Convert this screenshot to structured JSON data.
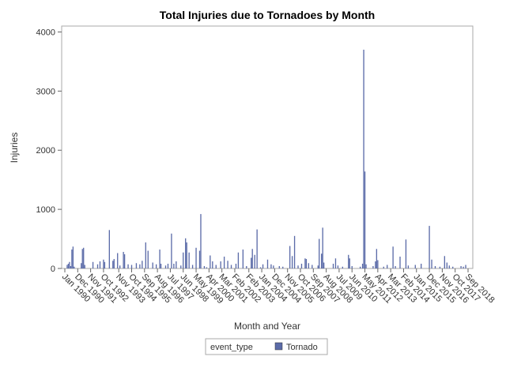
{
  "chart_data": {
    "type": "bar",
    "title": "Total Injuries due to Tornadoes by Month",
    "xlabel": "Month and Year",
    "ylabel": "Injuries",
    "ylim": [
      0,
      4100
    ],
    "yticks": [
      "0",
      "1000",
      "2000",
      "3000",
      "4000"
    ],
    "x_start": "1990-01",
    "x_end": "2018-09",
    "xticks": [
      "Jan 1990",
      "Dec 1990",
      "Nov 1991",
      "Oct 1992",
      "Nov 1993",
      "Oct 1994",
      "Sep 1995",
      "Aug 1996",
      "Jul 1997",
      "Jun 1998",
      "May 1999",
      "Apr 2000",
      "Mar 2001",
      "Feb 2002",
      "Feb 2003",
      "Jan 2004",
      "Dec 2004",
      "Nov 2005",
      "Oct 2006",
      "Sep 2007",
      "Aug 2008",
      "Jul 2009",
      "Jun 2010",
      "May 2011",
      "Apr 2012",
      "Mar 2013",
      "Feb 2014",
      "Jan 2015",
      "Dec 2015",
      "Nov 2016",
      "Oct 2017",
      "Sep 2018"
    ],
    "grid": false,
    "legend": {
      "position": "bottom-center",
      "title": "event_type",
      "entries": [
        "Tornado"
      ]
    },
    "series": [
      {
        "name": "Tornado",
        "color": "#5b6ba8",
        "points": [
          [
            "1990-03",
            60
          ],
          [
            "1990-04",
            80
          ],
          [
            "1990-05",
            110
          ],
          [
            "1990-06",
            40
          ],
          [
            "1990-07",
            320
          ],
          [
            "1990-08",
            370
          ],
          [
            "1990-09",
            30
          ],
          [
            "1991-03",
            90
          ],
          [
            "1991-04",
            330
          ],
          [
            "1991-05",
            350
          ],
          [
            "1991-06",
            60
          ],
          [
            "1992-01",
            110
          ],
          [
            "1992-05",
            70
          ],
          [
            "1992-07",
            120
          ],
          [
            "1992-10",
            150
          ],
          [
            "1992-11",
            110
          ],
          [
            "1993-03",
            650
          ],
          [
            "1993-06",
            130
          ],
          [
            "1993-07",
            160
          ],
          [
            "1993-10",
            260
          ],
          [
            "1993-12",
            50
          ],
          [
            "1994-03",
            280
          ],
          [
            "1994-04",
            240
          ],
          [
            "1994-07",
            70
          ],
          [
            "1994-10",
            60
          ],
          [
            "1995-02",
            90
          ],
          [
            "1995-05",
            70
          ],
          [
            "1995-07",
            130
          ],
          [
            "1995-10",
            440
          ],
          [
            "1995-12",
            300
          ],
          [
            "1996-04",
            100
          ],
          [
            "1996-07",
            70
          ],
          [
            "1996-10",
            320
          ],
          [
            "1996-11",
            80
          ],
          [
            "1997-03",
            50
          ],
          [
            "1997-05",
            80
          ],
          [
            "1997-08",
            590
          ],
          [
            "1997-10",
            80
          ],
          [
            "1997-12",
            120
          ],
          [
            "1998-04",
            50
          ],
          [
            "1998-06",
            270
          ],
          [
            "1998-08",
            510
          ],
          [
            "1998-09",
            440
          ],
          [
            "1998-11",
            270
          ],
          [
            "1999-02",
            60
          ],
          [
            "1999-05",
            350
          ],
          [
            "1999-08",
            300
          ],
          [
            "1999-09",
            920
          ],
          [
            "1999-12",
            40
          ],
          [
            "2000-02",
            20
          ],
          [
            "2000-05",
            220
          ],
          [
            "2000-07",
            120
          ],
          [
            "2000-10",
            60
          ],
          [
            "2001-02",
            120
          ],
          [
            "2001-05",
            200
          ],
          [
            "2001-08",
            130
          ],
          [
            "2001-11",
            60
          ],
          [
            "2002-03",
            80
          ],
          [
            "2002-05",
            270
          ],
          [
            "2002-09",
            320
          ],
          [
            "2002-12",
            40
          ],
          [
            "2003-04",
            180
          ],
          [
            "2003-05",
            330
          ],
          [
            "2003-07",
            230
          ],
          [
            "2003-09",
            660
          ],
          [
            "2003-12",
            20
          ],
          [
            "2004-02",
            70
          ],
          [
            "2004-06",
            150
          ],
          [
            "2004-09",
            70
          ],
          [
            "2004-11",
            50
          ],
          [
            "2005-04",
            40
          ],
          [
            "2005-07",
            30
          ],
          [
            "2006-01",
            380
          ],
          [
            "2006-03",
            210
          ],
          [
            "2006-05",
            550
          ],
          [
            "2006-08",
            50
          ],
          [
            "2006-11",
            80
          ],
          [
            "2007-02",
            170
          ],
          [
            "2007-03",
            160
          ],
          [
            "2007-05",
            90
          ],
          [
            "2007-08",
            60
          ],
          [
            "2008-01",
            50
          ],
          [
            "2008-02",
            500
          ],
          [
            "2008-04",
            250
          ],
          [
            "2008-05",
            690
          ],
          [
            "2008-06",
            100
          ],
          [
            "2009-02",
            80
          ],
          [
            "2009-04",
            170
          ],
          [
            "2009-06",
            50
          ],
          [
            "2009-10",
            30
          ],
          [
            "2010-03",
            230
          ],
          [
            "2010-04",
            170
          ],
          [
            "2010-06",
            40
          ],
          [
            "2011-01",
            30
          ],
          [
            "2011-03",
            80
          ],
          [
            "2011-04",
            3700
          ],
          [
            "2011-05",
            1640
          ],
          [
            "2011-06",
            70
          ],
          [
            "2011-12",
            40
          ],
          [
            "2012-02",
            120
          ],
          [
            "2012-03",
            330
          ],
          [
            "2012-04",
            140
          ],
          [
            "2012-09",
            30
          ],
          [
            "2012-12",
            60
          ],
          [
            "2013-05",
            370
          ],
          [
            "2013-07",
            40
          ],
          [
            "2013-11",
            200
          ],
          [
            "2014-04",
            490
          ],
          [
            "2014-06",
            50
          ],
          [
            "2014-12",
            60
          ],
          [
            "2015-05",
            80
          ],
          [
            "2015-12",
            720
          ],
          [
            "2016-02",
            150
          ],
          [
            "2016-05",
            40
          ],
          [
            "2016-09",
            30
          ],
          [
            "2017-01",
            210
          ],
          [
            "2017-03",
            100
          ],
          [
            "2017-05",
            50
          ],
          [
            "2017-08",
            30
          ],
          [
            "2018-03",
            40
          ],
          [
            "2018-05",
            30
          ],
          [
            "2018-07",
            60
          ]
        ]
      }
    ]
  }
}
